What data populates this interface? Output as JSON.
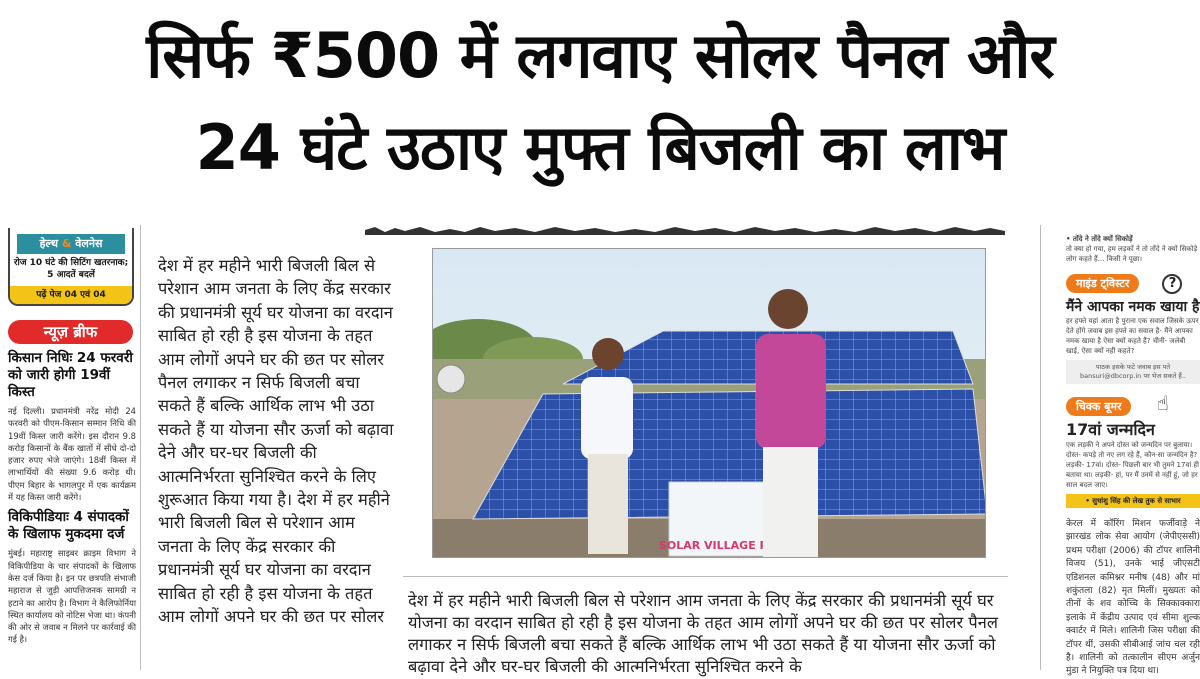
{
  "headline": {
    "line1": "सिर्फ ₹500 में लगवाए सोलर पैनल और",
    "line2": "24 घंटे उठाए मुफ्त बिजली का लाभ"
  },
  "left": {
    "health_tag_part1": "हेल्थ",
    "health_tag_amp": "&",
    "health_tag_part2": "वेलनेस",
    "health_text": "रोज 10 घंटे की सिटिंग खतरनाक; 5 आदतें बदलें",
    "health_footer": "पढ़ें पेज 04 एवं 04",
    "brief_label": "न्यूज़ ब्रीफ",
    "story1_title": "किसान निधिः 24 फरवरी को जारी होगी 19वीं किस्त",
    "story1_body": "नई दिल्ली। प्रधानमंत्री नरेंद्र मोदी 24 फरवरी को पीएम-किसान सम्मान निधि की 19वीं किस्त जारी करेंगे। इस दौरान 9.8 करोड़ किसानों के बैंक खातों में सीधे दो-दो हजार रुपए भेजे जाएंगे। 18वीं किस्त में लाभार्थियों की संख्या 9.6 करोड़ थी। पीएम बिहार के भागलपुर में एक कार्यक्रम में यह किस्त जारी करेंगे।",
    "story2_title": "विकिपीडियाः 4 संपादकों के खिलाफ मुकदमा दर्ज",
    "story2_body": "मुंबई। महाराष्ट्र साइबर क्राइम विभाग ने विकिपीडिया के चार संपादकों के खिलाफ केस दर्ज किया है। इन पर छत्रपति संभाजी महाराज से जुड़ी आपत्तिजनक सामग्री न हटाने का आरोप है। विभाग ने कैलिफोर्निया स्थित कार्यालय को नोटिस भेजा था। कंपनी की ओर से जवाब न मिलने पर कार्रवाई की गई है।"
  },
  "center_column_lines": [
    "देश में हर महीने भारी बिजली बिल",
    "से परेशान आम जनता के लिए",
    "केंद्र सरकार की प्रधानमंत्री सूर्य",
    "घर योजना का वरदान साबित हो",
    "रही है इस योजना के तहत आम",
    "लोगों अपने घर की छत पर सोलर",
    "पैनल लगाकर न सिर्फ बिजली",
    "बचा सकते हैं बल्कि आर्थिक लाभ",
    "भी उठा सकते हैं या योजना सौर",
    "ऊर्जा को बढ़ावा देने और घर-घर",
    "बिजली की आत्मनिर्भरता सुनिश्चित",
    "करने के लिए शुरूआत किया गया",
    "है। देश में हर महीने भारी बिजली",
    "बिल से परेशान आम जनता के",
    "लिए केंद्र सरकार की प्रधानमंत्री",
    "सूर्य घर योजना का वरदान साबित",
    "हो रही है इस योजना के तहत आम",
    "लोगों अपने घर की छत पर सोलर"
  ],
  "photo": {
    "sign_text": "SOLAR VILLAGE PROJE"
  },
  "bottom_lines": [
    "देश में हर महीने भारी बिजली बिल से परेशान आम जनता के लिए केंद्र सरकार की प्रधानमंत्री",
    "सूर्य घर योजना का वरदान साबित हो रही है इस योजना के तहत आम लोगों अपने घर की छत",
    "पर सोलर पैनल लगाकर न सिर्फ बिजली बचा सकते हैं बल्कि आर्थिक लाभ भी उठा सकते हैं",
    "या योजना सौर ऊर्जा को बढ़ावा देने और घर-घर बिजली की आत्मनिर्भरता सुनिश्चित करने के"
  ],
  "right": {
    "top_head": "• तोंदे ने तोंदे क्यों सिकोड़ें",
    "top_text": "तो क्या हो गया, हम लड़कों ने तो तोंदे ने क्यों सिकोड़े लोग कहते हैं... किसी ने पूछा।",
    "mind_tag": "माइंड ट्विस्टर",
    "mind_title": "मैंने आपका नमक खाया है",
    "mind_text": "हर हफ्ते यहां आता है पुराना एक सवाल जिसके ऊपर देते होंगे जवाब इस हफ्ते का सवाल है- मैंने आपका नमक खाया है ऐसा क्यों कहते हैं? चीनी- जलेबी खाई, ऐसा क्यों नहीं कहते?",
    "mind_box": "पाठक इसके फटे जवाब इस पते bansuri@dbcorp.in पर भेज सकते हैं..",
    "joke_tag": "चिक्क बूमर",
    "joke_title": "17वां जन्मदिन",
    "joke_text": "एक लड़की ने अपने दोस्त को जन्मदिन पर बुलाया। दोस्त- कपड़े तो नए लग रहे हैं, कौन-सा जन्मदिन है? लड़की- 17वां। दोस्त- पिछली बार भी तुमने 17वां ही बताया था। लड़की- हां, पर मैं उनमें से नहीं हूं, जो हर साल बदल जाए।",
    "joke_credit": "• सुधांशु सिंह की लेख तुक से साभार",
    "story_text": "केरल में कॉरिंग मिशन फर्जीवाड़े ने झारखंड लोक सेवा आयोग (जेपीएससी) प्रथम परीक्षा (2006) की टॉपर शालिनी विजय (51), उनके भाई जीएसटी एडिशनल कमिश्नर मनीष (48) और मां शकुंतला (82) मृत मिलीं। मुख्यतः को तीनों के शव कोच्चि के सिक्काक्कारा इलाके में केंद्रीय उत्पाद एवं सीमा शुल्क क्वार्टर में मिले। शालिनी जिस परीक्षा की टॉपर थीं, उसकी सीबीआई जांच चल रही है। शालिनी को तत्कालीन सीएम अर्जुन मुंडा ने नियुक्ति पत्र दिया था।"
  }
}
